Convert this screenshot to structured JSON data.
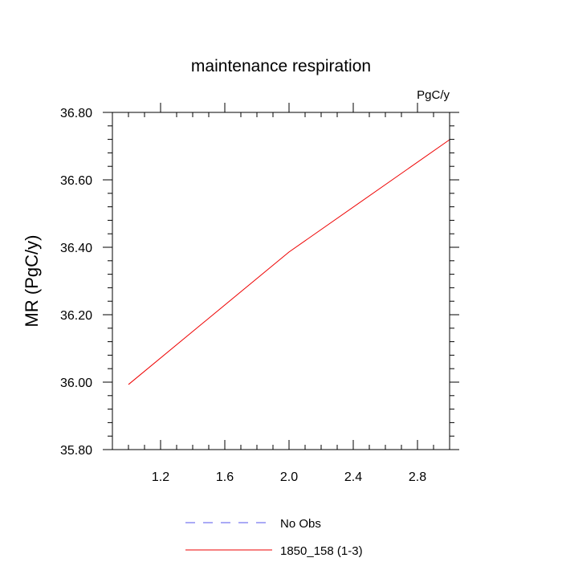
{
  "chart_data": {
    "type": "line",
    "title": "maintenance respiration",
    "units": "PgC/y",
    "xlabel": "",
    "ylabel": "MR  (PgC/y)",
    "xlim": [
      0.9,
      3.0
    ],
    "ylim": [
      35.8,
      36.8
    ],
    "xticks": [
      {
        "value": 1.2,
        "label": "1.2"
      },
      {
        "value": 1.6,
        "label": "1.6"
      },
      {
        "value": 2.0,
        "label": "2.0"
      },
      {
        "value": 2.4,
        "label": "2.4"
      },
      {
        "value": 2.8,
        "label": "2.8"
      }
    ],
    "yticks": [
      {
        "value": 35.8,
        "label": "35.80"
      },
      {
        "value": 36.0,
        "label": "36.00"
      },
      {
        "value": 36.2,
        "label": "36.20"
      },
      {
        "value": 36.4,
        "label": "36.40"
      },
      {
        "value": 36.6,
        "label": "36.60"
      },
      {
        "value": 36.8,
        "label": "36.80"
      }
    ],
    "x_minor_step": 0.1,
    "y_minor_step": 0.04,
    "series": [
      {
        "name": "No Obs",
        "color": "#5555ee",
        "dashed": true,
        "x": [],
        "y": []
      },
      {
        "name": "1850_158 (1-3)",
        "color": "#ee0000",
        "dashed": false,
        "x": [
          1.0,
          2.0,
          3.0
        ],
        "y": [
          35.993,
          36.386,
          36.719
        ]
      }
    ],
    "legend_placement": "bottom-center",
    "grid": false
  }
}
